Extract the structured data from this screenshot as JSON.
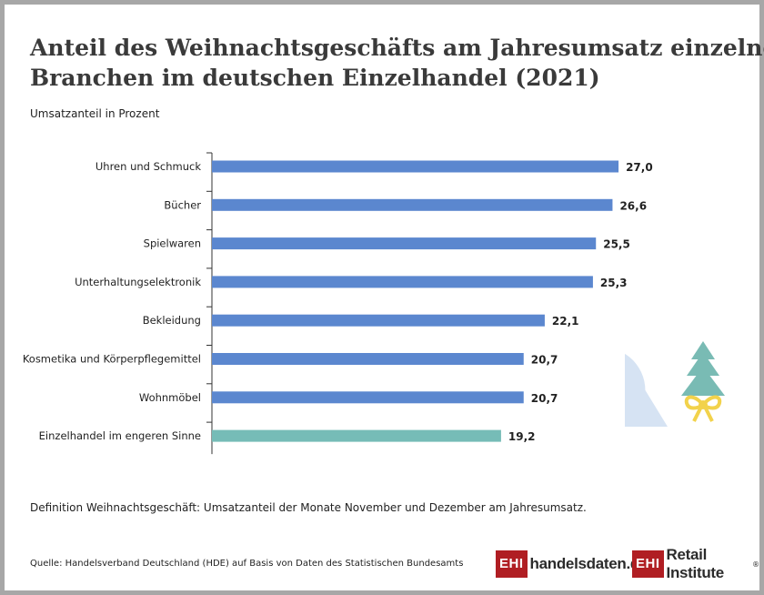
{
  "title": {
    "line1": "Anteil des Weihnachtsgeschäfts am Jahresumsatz einzelner",
    "line2": "Branchen im deutschen Einzelhandel (2021)"
  },
  "subtitle": "Umsatzanteil in Prozent",
  "definition": "Definition Weihnachtsgeschäft: Umsatzanteil der Monate November und Dezember am Jahresumsatz.",
  "source": "Quelle: Handelsverband Deutschland (HDE) auf Basis von Daten des Statistischen Bundesamts",
  "logos": {
    "left_box": "EHI",
    "left_text": "handelsdaten.de",
    "right_box": "EHI",
    "right_text": "Retail Institute",
    "right_mark": "®"
  },
  "colors": {
    "bar": "#5b87cf",
    "bar_highlight": "#76bcb7",
    "brand_red": "#b01e23",
    "pie": "#d6e3f3",
    "tree": "#79bbb4",
    "bow": "#f2d24b"
  },
  "icons": [
    "pie-decoration-icon",
    "christmas-tree-icon",
    "bow-icon"
  ],
  "chart_data": {
    "type": "bar",
    "orientation": "horizontal",
    "categories": [
      "Uhren und Schmuck",
      "Bücher",
      "Spielwaren",
      "Unterhaltungselektronik",
      "Bekleidung",
      "Kosmetika und Körperpflegemittel",
      "Wohnmöbel",
      "Einzelhandel im engeren Sinne"
    ],
    "values": [
      27.0,
      26.6,
      25.5,
      25.3,
      22.1,
      20.7,
      20.7,
      19.2
    ],
    "value_labels": [
      "27,0",
      "26,6",
      "25,5",
      "25,3",
      "22,1",
      "20,7",
      "20,7",
      "19,2"
    ],
    "highlight_index": 7,
    "xlim": [
      0,
      27.6
    ],
    "grid": false,
    "x_axis_visible": false,
    "ylabel": "Umsatzanteil in Prozent"
  }
}
